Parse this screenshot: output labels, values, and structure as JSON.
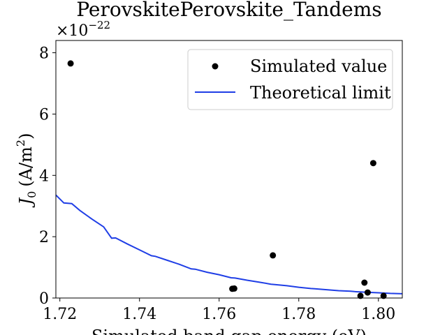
{
  "chart_data": {
    "type": "scatter",
    "title": "PerovskitePerovskite_Tandems",
    "xlabel": "Simulated band gap energy (eV)",
    "ylabel": "J_0 (A/m^2)",
    "ylabel_parts": {
      "symbol": "J",
      "sub": "0",
      "unit_open": "(A/m",
      "sup": "2",
      "unit_close": ")"
    },
    "offset_text": {
      "base": "×10",
      "exponent": "−22"
    },
    "xlim": [
      1.719,
      1.806
    ],
    "ylim": [
      0,
      8.4
    ],
    "x_ticks": [
      1.72,
      1.74,
      1.76,
      1.78,
      1.8
    ],
    "x_tick_labels": [
      "1.72",
      "1.74",
      "1.76",
      "1.78",
      "1.80"
    ],
    "y_ticks": [
      0,
      2,
      4,
      6,
      8
    ],
    "y_tick_labels": [
      "0",
      "2",
      "4",
      "6",
      "8"
    ],
    "legend": {
      "placement": "top-right",
      "entries": [
        {
          "label": "Simulated value",
          "kind": "marker"
        },
        {
          "label": "Theoretical limit",
          "kind": "line"
        }
      ]
    },
    "series": [
      {
        "name": "Simulated value",
        "kind": "scatter",
        "color": "#000000",
        "points": [
          [
            1.7227,
            7.65
          ],
          [
            1.7633,
            0.3
          ],
          [
            1.7638,
            0.31
          ],
          [
            1.7735,
            1.39
          ],
          [
            1.7955,
            0.07
          ],
          [
            1.7965,
            0.5
          ],
          [
            1.7973,
            0.18
          ],
          [
            1.7987,
            4.4
          ],
          [
            1.8013,
            0.07
          ]
        ]
      },
      {
        "name": "Theoretical limit",
        "kind": "line",
        "color": "#1f3ee6",
        "points": [
          [
            1.719,
            3.36
          ],
          [
            1.721,
            3.1
          ],
          [
            1.723,
            3.08
          ],
          [
            1.725,
            2.86
          ],
          [
            1.728,
            2.58
          ],
          [
            1.731,
            2.32
          ],
          [
            1.733,
            1.95
          ],
          [
            1.734,
            1.96
          ],
          [
            1.737,
            1.76
          ],
          [
            1.74,
            1.57
          ],
          [
            1.743,
            1.38
          ],
          [
            1.744,
            1.36
          ],
          [
            1.747,
            1.23
          ],
          [
            1.75,
            1.1
          ],
          [
            1.753,
            0.95
          ],
          [
            1.754,
            0.94
          ],
          [
            1.757,
            0.84
          ],
          [
            1.76,
            0.76
          ],
          [
            1.763,
            0.66
          ],
          [
            1.764,
            0.65
          ],
          [
            1.767,
            0.58
          ],
          [
            1.77,
            0.52
          ],
          [
            1.773,
            0.45
          ],
          [
            1.774,
            0.44
          ],
          [
            1.777,
            0.4
          ],
          [
            1.78,
            0.35
          ],
          [
            1.783,
            0.31
          ],
          [
            1.784,
            0.3
          ],
          [
            1.787,
            0.27
          ],
          [
            1.79,
            0.24
          ],
          [
            1.793,
            0.22
          ],
          [
            1.794,
            0.21
          ],
          [
            1.797,
            0.19
          ],
          [
            1.8,
            0.17
          ],
          [
            1.803,
            0.15
          ],
          [
            1.806,
            0.14
          ]
        ]
      }
    ]
  }
}
